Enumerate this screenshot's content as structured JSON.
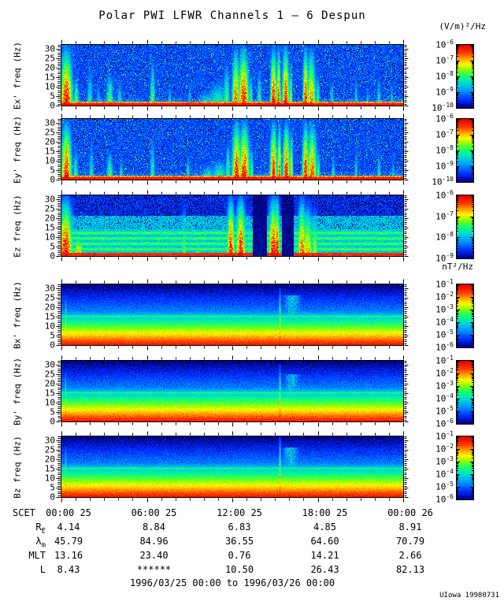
{
  "title": "Polar PWI LFWR Channels 1 — 6 Despun",
  "credit": "UIowa 19980731",
  "units": {
    "electric": "(V/m)²/Hz",
    "magnetic": "nT²/Hz"
  },
  "x_axis": {
    "name": "SCET",
    "tick_labels": [
      "00:00 25",
      "06:00 25",
      "12:00 25",
      "18:00 25",
      "00:00 26"
    ],
    "tick_hours": [
      0,
      6,
      12,
      18,
      24
    ]
  },
  "y_axis": {
    "ticks": [
      30,
      25,
      20,
      15,
      10,
      5,
      0
    ],
    "range_hz": [
      0,
      32
    ]
  },
  "ephemeris": {
    "rows": [
      {
        "label": "R",
        "sub": "E",
        "values": [
          "4.14",
          "8.84",
          "6.83",
          "4.85",
          "8.91"
        ]
      },
      {
        "label": "λ",
        "sub": "m",
        "values": [
          "45.79",
          "84.96",
          "36.55",
          "64.60",
          "70.79"
        ]
      },
      {
        "label": "MLT",
        "sub": "",
        "values": [
          "13.16",
          "23.40",
          "0.76",
          "14.21",
          "2.66"
        ]
      },
      {
        "label": "L",
        "sub": "",
        "values": [
          "8.43",
          "******",
          "10.50",
          "26.43",
          "82.13"
        ]
      }
    ],
    "date_range": "1996/03/25 00:00 to 1996/03/26 00:00"
  },
  "chart_data": {
    "type": "heatmap",
    "title": "Polar PWI LFWR Channels 1 — 6 Despun",
    "x_range_hours": [
      0,
      24
    ],
    "freq_range_hz": [
      0,
      32
    ],
    "colormap": "rainbow (blue=low, red=high)",
    "panels": [
      {
        "id": "ex",
        "ylabel": "Ex' freq (Hz)",
        "style": "E",
        "seed": 11,
        "colorbar": {
          "unit": "(V/m)²/Hz",
          "exponents": [
            "-6",
            "-7",
            "-8",
            "-9",
            "-10"
          ]
        },
        "events": [
          [
            0.35,
            0.35,
            1,
            1
          ],
          [
            1.05,
            0.15,
            0.55,
            0.62
          ],
          [
            2.0,
            0.18,
            0.75,
            0.5
          ],
          [
            2.6,
            0.12,
            0.5,
            0.45
          ],
          [
            3.4,
            0.22,
            0.6,
            0.62
          ],
          [
            4.1,
            0.12,
            0.5,
            0.5
          ],
          [
            6.4,
            0.15,
            0.85,
            0.6
          ],
          [
            7.6,
            0.1,
            0.4,
            0.5
          ],
          [
            9.0,
            0.1,
            0.45,
            0.45
          ],
          [
            10.2,
            0.5,
            0.3,
            0.5
          ],
          [
            11.0,
            0.6,
            0.45,
            0.55
          ],
          [
            11.6,
            0.2,
            0.8,
            0.6
          ],
          [
            12.25,
            0.22,
            1,
            0.9
          ],
          [
            12.8,
            0.3,
            1,
            1
          ],
          [
            13.3,
            0.12,
            0.6,
            0.6
          ],
          [
            13.9,
            0.15,
            0.7,
            0.55
          ],
          [
            14.9,
            0.18,
            1,
            1
          ],
          [
            15.25,
            0.12,
            1,
            0.95
          ],
          [
            15.75,
            0.2,
            1,
            1
          ],
          [
            16.1,
            0.1,
            0.8,
            0.7
          ],
          [
            17.15,
            0.15,
            1,
            1
          ],
          [
            17.55,
            0.25,
            1,
            0.85
          ],
          [
            18.0,
            0.12,
            0.6,
            0.6
          ],
          [
            19.0,
            0.12,
            0.5,
            0.5
          ],
          [
            20.7,
            0.1,
            0.6,
            0.5
          ],
          [
            21.5,
            0.1,
            0.4,
            0.45
          ],
          [
            22.3,
            0.12,
            0.6,
            0.5
          ],
          [
            23.2,
            0.1,
            0.5,
            0.45
          ]
        ]
      },
      {
        "id": "ey",
        "ylabel": "Ey' freq (Hz)",
        "style": "E",
        "seed": 12,
        "colorbar": {
          "unit": "(V/m)²/Hz",
          "exponents": [
            "-6",
            "-7",
            "-8",
            "-9",
            "-10"
          ]
        },
        "events": [
          [
            0.35,
            0.3,
            1,
            1
          ],
          [
            1.0,
            0.15,
            0.6,
            0.6
          ],
          [
            2.1,
            0.15,
            0.7,
            0.5
          ],
          [
            3.4,
            0.2,
            0.55,
            0.6
          ],
          [
            4.2,
            0.12,
            0.45,
            0.5
          ],
          [
            6.4,
            0.15,
            0.8,
            0.55
          ],
          [
            8.9,
            0.12,
            0.5,
            0.5
          ],
          [
            10.3,
            0.5,
            0.3,
            0.5
          ],
          [
            11.1,
            0.5,
            0.4,
            0.55
          ],
          [
            11.7,
            0.15,
            0.7,
            0.6
          ],
          [
            12.3,
            0.25,
            1,
            1
          ],
          [
            12.85,
            0.3,
            1,
            1
          ],
          [
            13.35,
            0.12,
            0.65,
            0.6
          ],
          [
            14.9,
            0.2,
            1,
            1
          ],
          [
            15.3,
            0.12,
            1,
            0.9
          ],
          [
            15.8,
            0.2,
            1,
            1
          ],
          [
            16.15,
            0.1,
            0.9,
            0.8
          ],
          [
            17.15,
            0.18,
            1,
            1
          ],
          [
            17.6,
            0.28,
            1,
            0.9
          ],
          [
            18.05,
            0.12,
            0.6,
            0.6
          ],
          [
            19.1,
            0.12,
            0.5,
            0.5
          ],
          [
            20.7,
            0.1,
            0.6,
            0.5
          ],
          [
            22.3,
            0.12,
            0.55,
            0.5
          ],
          [
            23.3,
            0.1,
            0.5,
            0.45
          ]
        ]
      },
      {
        "id": "ez",
        "ylabel": "Ez freq (Hz)",
        "style": "Ez",
        "seed": 13,
        "colorbar": {
          "unit": "(V/m)²/Hz",
          "exponents": [
            "-6",
            "-7",
            "-8",
            "-9"
          ]
        },
        "events": [
          [
            0.3,
            0.4,
            1,
            1
          ],
          [
            1.2,
            0.3,
            0.4,
            0.8
          ],
          [
            5.0,
            0.15,
            0.5,
            0.5
          ],
          [
            8.6,
            0.15,
            0.9,
            0.6
          ],
          [
            9.6,
            0.2,
            0.5,
            0.55
          ],
          [
            11.9,
            0.22,
            1,
            1
          ],
          [
            12.6,
            0.28,
            1,
            1
          ],
          [
            13.2,
            0.1,
            0.8,
            0.6
          ],
          [
            14.9,
            0.3,
            1,
            1
          ],
          [
            15.15,
            0.15,
            1,
            1
          ],
          [
            16.9,
            0.25,
            1,
            0.9
          ],
          [
            17.3,
            0.3,
            0.9,
            0.8
          ],
          [
            17.8,
            0.2,
            0.8,
            0.7
          ],
          [
            21.0,
            0.15,
            0.5,
            0.5
          ]
        ],
        "gaps": [
          [
            13.95,
            0.5
          ],
          [
            15.9,
            0.42
          ]
        ]
      },
      {
        "id": "bx",
        "ylabel": "Bx' freq (Hz)",
        "style": "B",
        "seed": 21,
        "colorbar": {
          "unit": "nT²/Hz",
          "exponents": [
            "-1",
            "-2",
            "-3",
            "-4",
            "-5",
            "-6"
          ]
        },
        "events": [
          [
            0.3,
            0.07,
            0.8,
            0.85
          ],
          [
            11.95,
            0.05,
            0.75,
            0.7
          ],
          [
            12.6,
            0.05,
            0.55,
            0.6
          ],
          [
            15.35,
            0.07,
            0.9,
            0.9
          ]
        ],
        "blobs": [
          [
            16.2,
            0.55,
            12,
            26,
            0.42
          ]
        ]
      },
      {
        "id": "by",
        "ylabel": "By' freq (Hz)",
        "style": "B",
        "seed": 22,
        "colorbar": {
          "unit": "nT²/Hz",
          "exponents": [
            "-1",
            "-2",
            "-3",
            "-4",
            "-5",
            "-6"
          ]
        },
        "events": [
          [
            0.3,
            0.07,
            0.8,
            0.85
          ],
          [
            11.95,
            0.05,
            0.7,
            0.65
          ],
          [
            12.6,
            0.05,
            0.5,
            0.55
          ],
          [
            15.35,
            0.07,
            0.9,
            0.9
          ]
        ],
        "blobs": [
          [
            16.2,
            0.5,
            12,
            25,
            0.4
          ]
        ]
      },
      {
        "id": "bz",
        "ylabel": "Bz freq (Hz)",
        "style": "B",
        "seed": 23,
        "colorbar": {
          "unit": "nT²/Hz",
          "exponents": [
            "-1",
            "-2",
            "-3",
            "-4",
            "-5",
            "-6"
          ]
        },
        "events": [
          [
            0.3,
            0.07,
            0.8,
            0.85
          ],
          [
            12.1,
            0.05,
            0.75,
            0.7
          ],
          [
            12.7,
            0.05,
            0.55,
            0.6
          ],
          [
            15.35,
            0.07,
            0.95,
            0.9
          ]
        ],
        "blobs": [
          [
            16.1,
            0.5,
            12,
            26,
            0.42
          ]
        ]
      }
    ]
  }
}
